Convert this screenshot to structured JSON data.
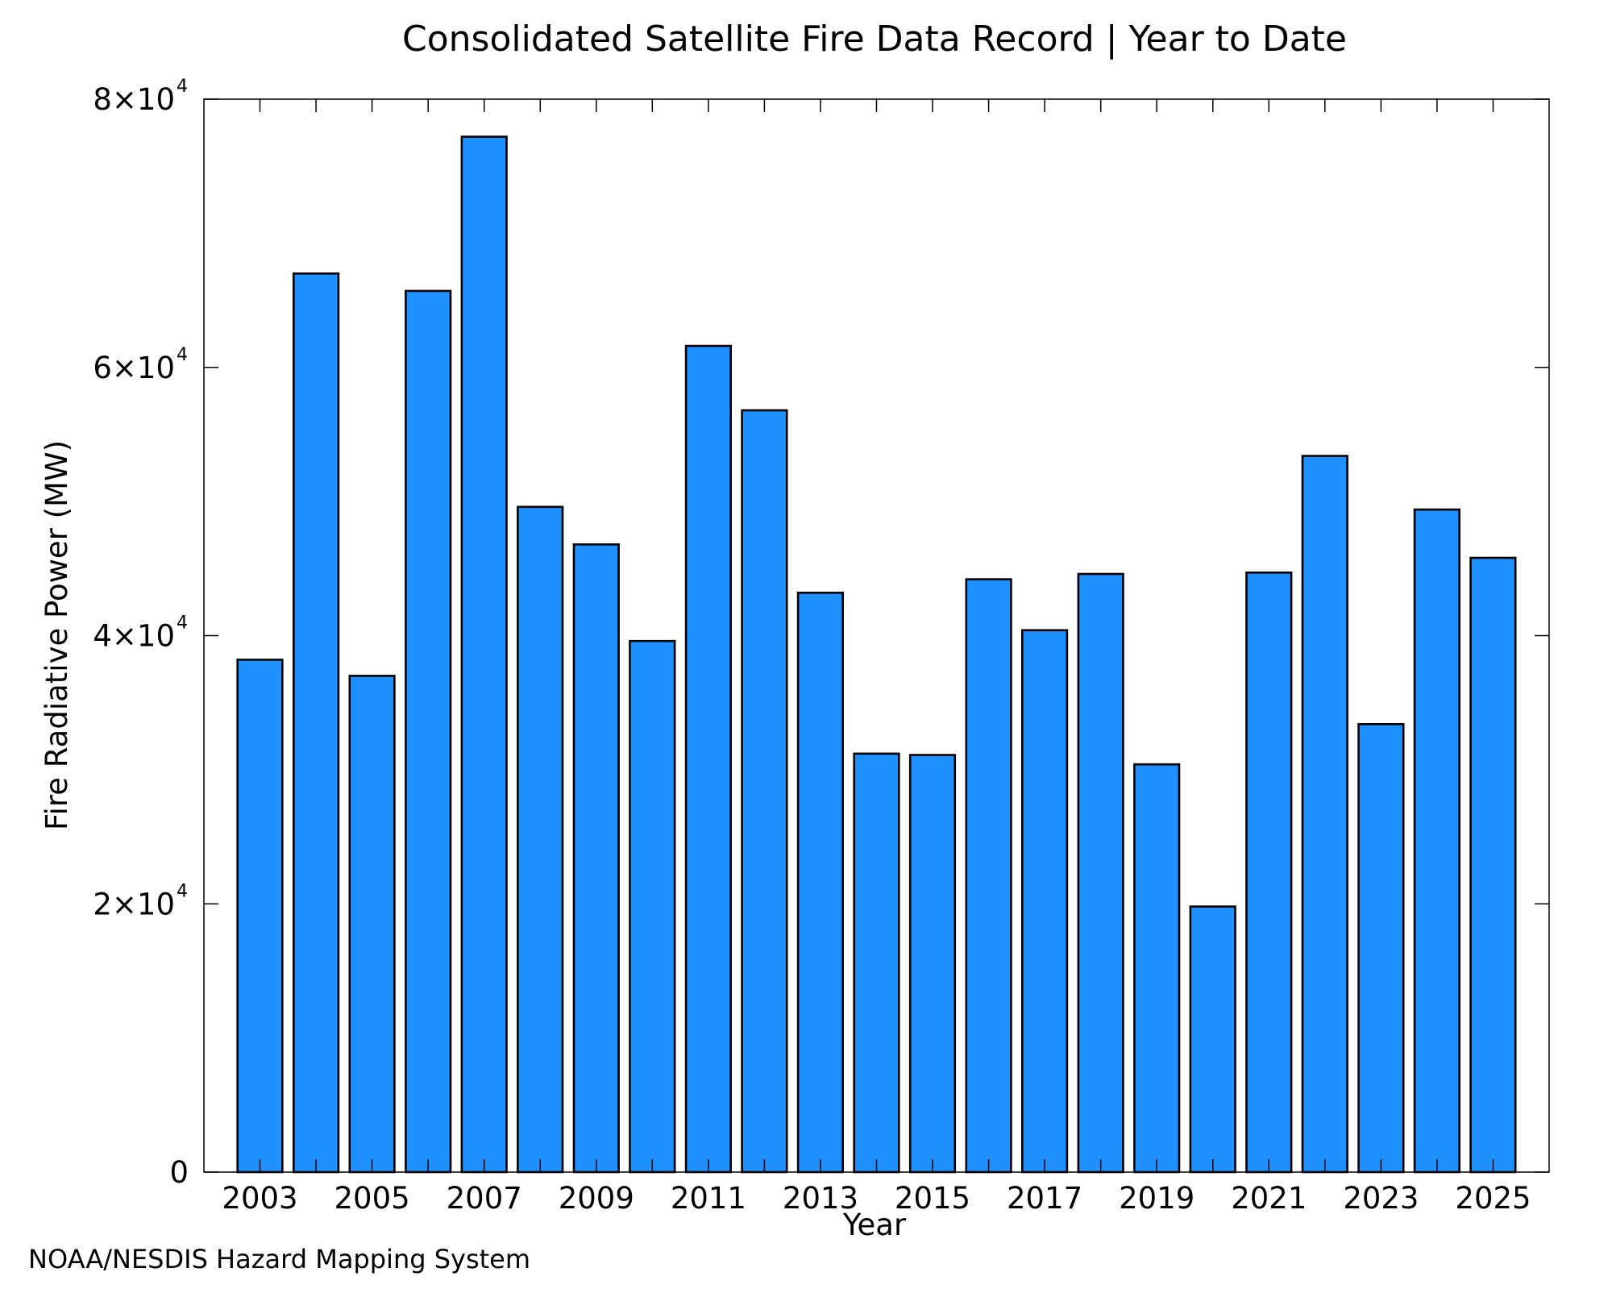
{
  "chart_data": {
    "type": "bar",
    "title": "Consolidated Satellite Fire Data Record | Year to Date",
    "xlabel": "Year",
    "ylabel": "Fire Radiative Power (MW)",
    "categories": [
      "2003",
      "2004",
      "2005",
      "2006",
      "2007",
      "2008",
      "2009",
      "2010",
      "2011",
      "2012",
      "2013",
      "2014",
      "2015",
      "2016",
      "2017",
      "2018",
      "2019",
      "2020",
      "2021",
      "2022",
      "2023",
      "2024",
      "2025"
    ],
    "values": [
      38200,
      67000,
      37000,
      65700,
      77200,
      49600,
      46800,
      39600,
      61600,
      56800,
      43200,
      31200,
      31100,
      44200,
      40400,
      44600,
      30400,
      19800,
      44700,
      53400,
      33400,
      49400,
      45800
    ],
    "xtick_labels": [
      "2003",
      "2005",
      "2007",
      "2009",
      "2011",
      "2013",
      "2015",
      "2017",
      "2019",
      "2021",
      "2023",
      "2025"
    ],
    "ylim": [
      0,
      80000
    ],
    "yticks": [
      {
        "value": 0,
        "mantissa": "0",
        "exponent": ""
      },
      {
        "value": 20000,
        "mantissa": "2×10",
        "exponent": "4"
      },
      {
        "value": 40000,
        "mantissa": "4×10",
        "exponent": "4"
      },
      {
        "value": 60000,
        "mantissa": "6×10",
        "exponent": "4"
      },
      {
        "value": 80000,
        "mantissa": "8×10",
        "exponent": "4"
      }
    ],
    "bar_color": "#1E90FF",
    "bar_edge_color": "#000000",
    "grid": false,
    "legend": "none"
  },
  "source_credit": "NOAA/NESDIS Hazard Mapping System",
  "colors": {
    "credit_text": "#808080",
    "axis": "#000000"
  }
}
